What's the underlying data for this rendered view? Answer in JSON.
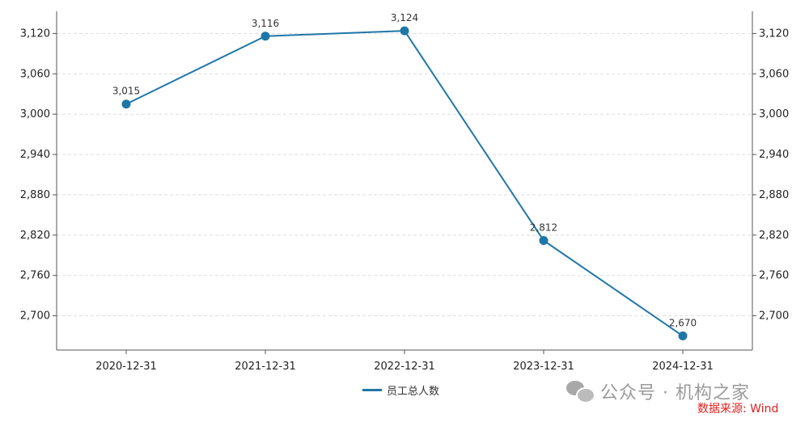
{
  "chart_data": {
    "type": "line",
    "categories": [
      "2020-12-31",
      "2021-12-31",
      "2022-12-31",
      "2023-12-31",
      "2024-12-31"
    ],
    "series": [
      {
        "name": "员工总人数",
        "values": [
          3015,
          3116,
          3124,
          2812,
          2670
        ],
        "color": "#1f77a8"
      }
    ],
    "data_labels": [
      "3,015",
      "3,116",
      "3,124",
      "2,812",
      "2,670"
    ],
    "y_ticks": [
      2700,
      2760,
      2820,
      2880,
      2940,
      3000,
      3060,
      3120
    ],
    "y_tick_labels": [
      "2,700",
      "2,760",
      "2,820",
      "2,880",
      "2,940",
      "3,000",
      "3,060",
      "3,120"
    ],
    "ylim": [
      2649,
      3153
    ],
    "grid": true,
    "dual_y_axis": true,
    "legend_position": "bottom-center"
  },
  "watermark": {
    "text": "公众号 · 机构之家",
    "icon": "wechat-icon"
  },
  "source_text": "数据来源: Wind",
  "colors": {
    "line": "#1f77a8",
    "source": "#e02020",
    "grid": "#dddddd"
  }
}
